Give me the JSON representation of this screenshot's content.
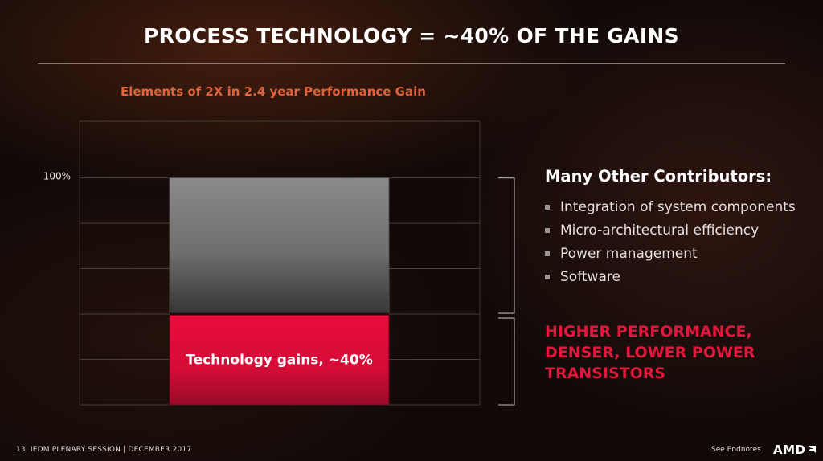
{
  "slide": {
    "title": "PROCESS TECHNOLOGY = ~40% OF THE GAINS",
    "footer": {
      "page_number": "13",
      "session": "IEDM PLENARY SESSION |  DECEMBER 2017",
      "endnotes": "See Endnotes",
      "logo_text": "AMD"
    },
    "colors": {
      "accent_orange": "#e0643a",
      "accent_red": "#e3173e",
      "bar_gray": "#7d7d7d",
      "bar_red": "#e0103a"
    }
  },
  "chart_data": {
    "type": "bar",
    "stacked": true,
    "title": "Elements of 2X in 2.4 year Performance Gain",
    "ytick_labels": [
      {
        "value": 100,
        "label": "100%"
      }
    ],
    "ylim": [
      0,
      125
    ],
    "grid": true,
    "series": [
      {
        "name": "Technology gains, ~40%",
        "value": 40,
        "color": "#e0103a"
      },
      {
        "name": "",
        "value": 60,
        "color": "#7d7d7d"
      }
    ],
    "bar_label": "Technology gains, ~40%"
  },
  "contributors": {
    "heading": "Many Other Contributors:",
    "items": [
      "Integration of system components",
      "Micro-architectural efficiency",
      "Power management",
      "Software"
    ]
  },
  "highlight": {
    "lines": [
      "HIGHER PERFORMANCE,",
      "DENSER, LOWER POWER",
      "TRANSISTORS"
    ]
  }
}
